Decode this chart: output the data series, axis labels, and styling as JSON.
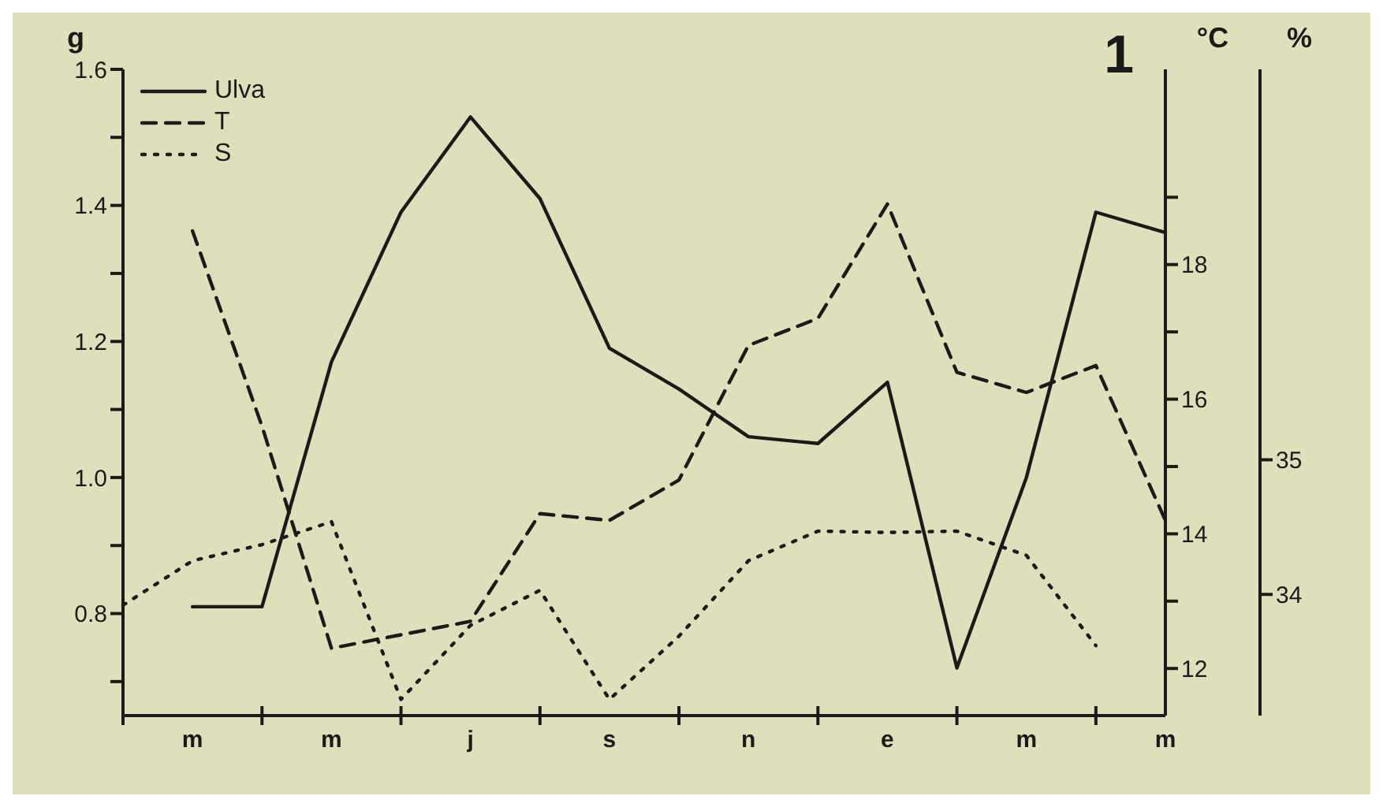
{
  "chart_data": {
    "type": "line",
    "title": "1",
    "ylabel": "g",
    "y2label": "°C",
    "y3label": "%",
    "categories": [
      null,
      "m",
      null,
      "m",
      null,
      "j",
      null,
      "s",
      null,
      "n",
      null,
      "e",
      null,
      "m",
      null,
      "m"
    ],
    "series": [
      {
        "name": "Ulva",
        "color": "#1a1a1a",
        "line_style": "solid",
        "values": [
          null,
          0.81,
          0.81,
          1.17,
          1.39,
          1.53,
          1.41,
          1.19,
          1.13,
          1.06,
          1.05,
          1.14,
          0.72,
          1.0,
          1.39,
          1.36
        ]
      },
      {
        "name": "T",
        "color": "#1a1a1a",
        "line_style": "dashed",
        "axis": "y2",
        "values": [
          null,
          18.5,
          15.6,
          12.3,
          12.5,
          12.7,
          14.3,
          14.2,
          14.8,
          16.8,
          17.2,
          18.9,
          16.4,
          16.1,
          16.5,
          14.2
        ]
      },
      {
        "name": "S",
        "color": "#1a1a1a",
        "line_style": "dotted",
        "axis": "y3",
        "values": [
          33.92,
          34.25,
          34.37,
          34.54,
          33.22,
          33.77,
          34.03,
          33.22,
          33.69,
          34.25,
          34.47,
          34.46,
          34.47,
          34.29,
          33.62,
          null
        ]
      }
    ],
    "ylim": [
      0.65,
      1.6
    ],
    "yticks": [
      {
        "value": 0.7,
        "label": null
      },
      0.8,
      {
        "value": 0.9,
        "label": null
      },
      {
        "value": 1,
        "label": "1.0"
      },
      {
        "value": 1.1,
        "label": null
      },
      1.2,
      {
        "value": 1.3,
        "label": null
      },
      1.4,
      {
        "value": 1.5,
        "label": null
      },
      1.6
    ],
    "y2lim": [
      11.3,
      20.9
    ],
    "y2ticks": [
      12,
      {
        "value": 13,
        "label": null
      },
      14,
      {
        "value": 15,
        "label": null
      },
      16,
      {
        "value": 17,
        "label": null
      },
      18,
      {
        "value": 19,
        "label": null
      }
    ],
    "y3lim": [
      33.1,
      37.9
    ],
    "y3ticks": [
      34,
      35
    ],
    "legend": "top left",
    "grid": false,
    "marker": "none"
  }
}
